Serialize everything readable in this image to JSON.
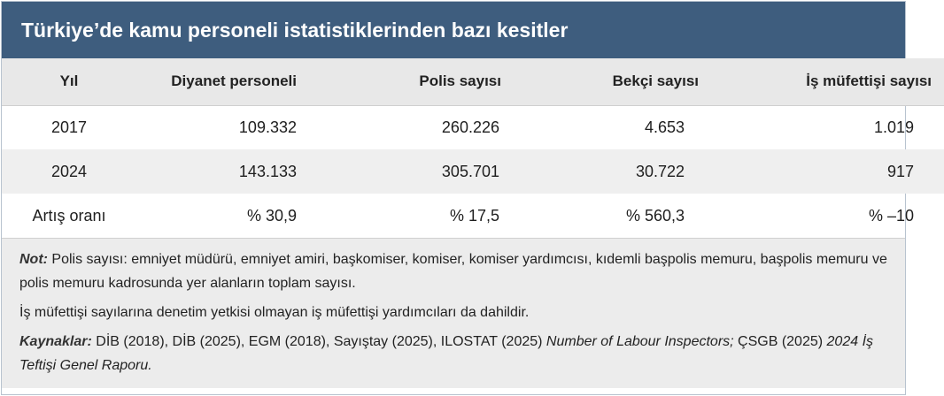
{
  "title": "Türkiye’de kamu personeli istatistiklerinden bazı kesitler",
  "columns": [
    "Yıl",
    "Diyanet personeli",
    "Polis sayısı",
    "Bekçi sayısı",
    "İş müfettişi sayısı"
  ],
  "rows": [
    [
      "2017",
      "109.332",
      "260.226",
      "4.653",
      "1.019"
    ],
    [
      "2024",
      "143.133",
      "305.701",
      "30.722",
      "917"
    ],
    [
      "Artış oranı",
      "% 30,9",
      "% 17,5",
      "% 560,3",
      "% –10"
    ]
  ],
  "notes": {
    "note_label": "Not:",
    "note_text": " Polis sayısı: emniyet müdürü, emniyet amiri, başkomiser, komiser, komiser yardımcısı, kıdemli başpolis memuru, başpolis memuru ve polis memuru kadrosunda yer alanların toplam sayısı.",
    "note_2": "İş müfettişi sayılarına denetim yetkisi olmayan iş müfettişi yardımcıları da dahildir.",
    "sources_label": "Kaynaklar:",
    "sources_text": " DİB (2018), DİB (2025), EGM (2018), Sayıştay (2025), ILOSTAT (2025) ",
    "sources_italic_1": "Number of Labour Inspectors;",
    "sources_text_2": " ÇSGB (2025) ",
    "sources_italic_2": "2024 İş Teftişi Genel Raporu."
  }
}
